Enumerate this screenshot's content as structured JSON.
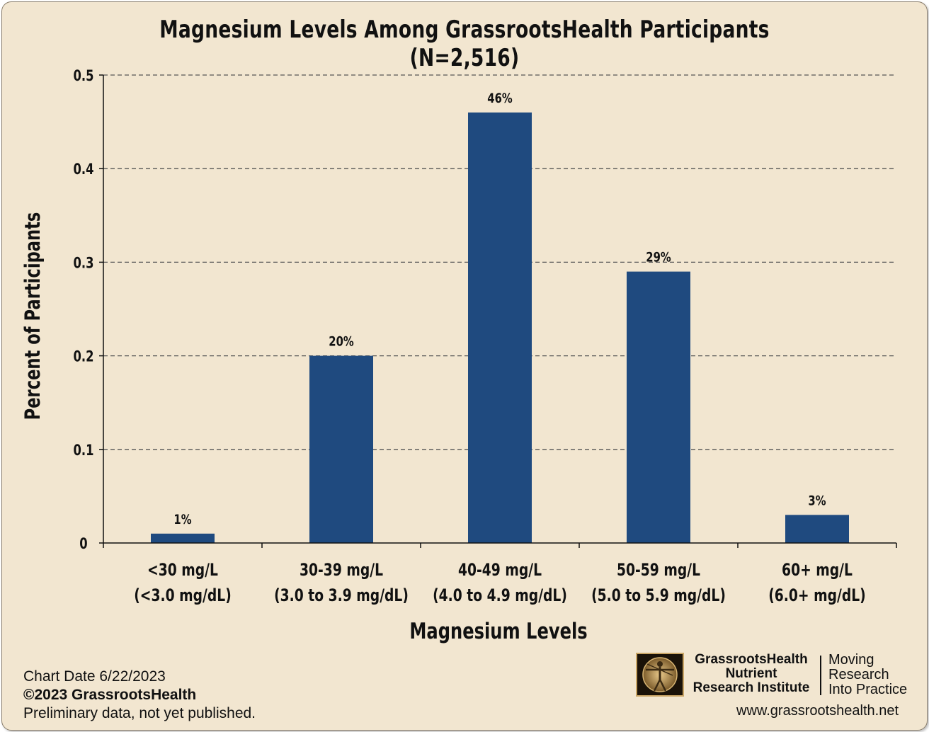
{
  "chart_data": {
    "type": "bar",
    "title": "Magnesium Levels Among GrassrootsHealth Participants (N=2,516)",
    "xlabel": "Magnesium Levels",
    "ylabel": "Percent of Participants",
    "categories": [
      [
        "<30 mg/L",
        "(<3.0 mg/dL)"
      ],
      [
        "30-39 mg/L",
        "(3.0 to 3.9 mg/dL)"
      ],
      [
        "40-49 mg/L",
        "(4.0 to 4.9 mg/dL)"
      ],
      [
        "50-59 mg/L",
        "(5.0 to 5.9 mg/dL)"
      ],
      [
        "60+ mg/L",
        "(6.0+ mg/dL)"
      ]
    ],
    "values": [
      0.01,
      0.2,
      0.46,
      0.29,
      0.03
    ],
    "data_labels": [
      "1%",
      "20%",
      "46%",
      "29%",
      "3%"
    ],
    "ylim": [
      0,
      0.5
    ],
    "yticks": [
      "0",
      "0.1",
      "0.2",
      "0.3",
      "0.4",
      "0.5"
    ],
    "grid": true,
    "bar_color": "#1f4a7f"
  },
  "footer": {
    "chart_date": "Chart Date 6/22/2023",
    "copyright": "©2023 GrassrootsHealth",
    "note": "Preliminary data, not yet published."
  },
  "branding": {
    "org_line1": "GrassrootsHealth",
    "org_line2": "Nutrient",
    "org_line3": "Research Institute",
    "tagline1": "Moving",
    "tagline2": "Research",
    "tagline3": "Into Practice",
    "website": "www.grassrootshealth.net",
    "logo_icon": "vitruvian-man-icon"
  },
  "colors": {
    "background": "#f2e6d0",
    "bar": "#1f4a7f",
    "grid": "#555555"
  }
}
